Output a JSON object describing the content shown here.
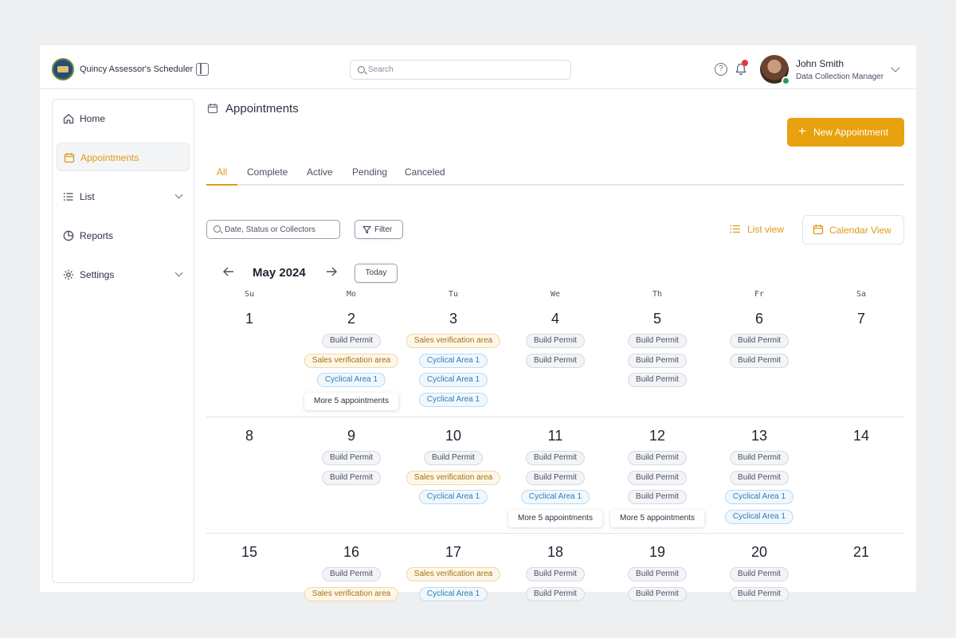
{
  "app": {
    "title": "Quincy Assessor's Scheduler"
  },
  "header": {
    "search_placeholder": "Search",
    "help_icon": "?",
    "user": {
      "name": "John Smith",
      "role": "Data Collection Manager"
    }
  },
  "sidebar": {
    "items": [
      {
        "label": "Home",
        "icon": "home-icon"
      },
      {
        "label": "Appointments",
        "icon": "calendar-icon",
        "active": true
      },
      {
        "label": "List",
        "icon": "list-icon",
        "expandable": true
      },
      {
        "label": "Reports",
        "icon": "pie-chart-icon"
      },
      {
        "label": "Settings",
        "icon": "gear-icon",
        "expandable": true
      }
    ]
  },
  "main": {
    "title": "Appointments",
    "new_button": "New Appointment",
    "tabs": [
      "All",
      "Complete",
      "Active",
      "Pending",
      "Canceled"
    ],
    "active_tab": "All",
    "filter_placeholder": "Date, Status or Collectors",
    "filter_label": "Filter",
    "list_view_label": "List view",
    "calendar_view_label": "Calendar View",
    "accent_color": "#e8a10f"
  },
  "calendar": {
    "month_label": "May 2024",
    "today_label": "Today",
    "weekdays": [
      "Su",
      "Mo",
      "Tu",
      "We",
      "Th",
      "Fr",
      "Sa"
    ],
    "weeks": [
      [
        {
          "day": "1",
          "chips": []
        },
        {
          "day": "2",
          "chips": [
            {
              "label": "Build Permit",
              "type": "permit"
            },
            {
              "label": "Sales verification area",
              "type": "sales"
            },
            {
              "label": "Cyclical Area 1",
              "type": "cyclical"
            }
          ],
          "more": "More 5 appointments"
        },
        {
          "day": "3",
          "chips": [
            {
              "label": "Sales verification area",
              "type": "sales"
            },
            {
              "label": "Cyclical Area 1",
              "type": "cyclical"
            },
            {
              "label": "Cyclical Area 1",
              "type": "cyclical"
            },
            {
              "label": "Cyclical Area 1",
              "type": "cyclical"
            }
          ]
        },
        {
          "day": "4",
          "chips": [
            {
              "label": "Build Permit",
              "type": "permit"
            },
            {
              "label": "Build Permit",
              "type": "permit"
            }
          ]
        },
        {
          "day": "5",
          "chips": [
            {
              "label": "Build Permit",
              "type": "permit"
            },
            {
              "label": "Build Permit",
              "type": "permit"
            },
            {
              "label": "Build Permit",
              "type": "permit"
            }
          ]
        },
        {
          "day": "6",
          "chips": [
            {
              "label": "Build Permit",
              "type": "permit"
            },
            {
              "label": "Build Permit",
              "type": "permit"
            }
          ]
        },
        {
          "day": "7",
          "chips": []
        }
      ],
      [
        {
          "day": "8",
          "chips": []
        },
        {
          "day": "9",
          "chips": [
            {
              "label": "Build Permit",
              "type": "permit"
            },
            {
              "label": "Build Permit",
              "type": "permit"
            }
          ]
        },
        {
          "day": "10",
          "chips": [
            {
              "label": "Build Permit",
              "type": "permit"
            },
            {
              "label": "Sales verification area",
              "type": "sales"
            },
            {
              "label": "Cyclical Area 1",
              "type": "cyclical"
            }
          ]
        },
        {
          "day": "11",
          "chips": [
            {
              "label": "Build Permit",
              "type": "permit"
            },
            {
              "label": "Build Permit",
              "type": "permit"
            },
            {
              "label": "Cyclical Area 1",
              "type": "cyclical"
            }
          ],
          "more": "More 5 appointments"
        },
        {
          "day": "12",
          "chips": [
            {
              "label": "Build Permit",
              "type": "permit"
            },
            {
              "label": "Build Permit",
              "type": "permit"
            },
            {
              "label": "Build Permit",
              "type": "permit"
            }
          ],
          "more": "More 5 appointments"
        },
        {
          "day": "13",
          "chips": [
            {
              "label": "Build Permit",
              "type": "permit"
            },
            {
              "label": "Build Permit",
              "type": "permit"
            },
            {
              "label": "Cyclical Area 1",
              "type": "cyclical"
            },
            {
              "label": "Cyclical Area 1",
              "type": "cyclical"
            }
          ]
        },
        {
          "day": "14",
          "chips": []
        }
      ],
      [
        {
          "day": "15",
          "chips": []
        },
        {
          "day": "16",
          "chips": [
            {
              "label": "Build Permit",
              "type": "permit"
            },
            {
              "label": "Sales verification area",
              "type": "sales"
            }
          ]
        },
        {
          "day": "17",
          "chips": [
            {
              "label": "Sales verification area",
              "type": "sales"
            },
            {
              "label": "Cyclical Area 1",
              "type": "cyclical"
            }
          ]
        },
        {
          "day": "18",
          "chips": [
            {
              "label": "Build Permit",
              "type": "permit"
            },
            {
              "label": "Build Permit",
              "type": "permit"
            }
          ]
        },
        {
          "day": "19",
          "chips": [
            {
              "label": "Build Permit",
              "type": "permit"
            },
            {
              "label": "Build Permit",
              "type": "permit"
            }
          ]
        },
        {
          "day": "20",
          "chips": [
            {
              "label": "Build Permit",
              "type": "permit"
            },
            {
              "label": "Build Permit",
              "type": "permit"
            }
          ]
        },
        {
          "day": "21",
          "chips": []
        }
      ]
    ]
  }
}
